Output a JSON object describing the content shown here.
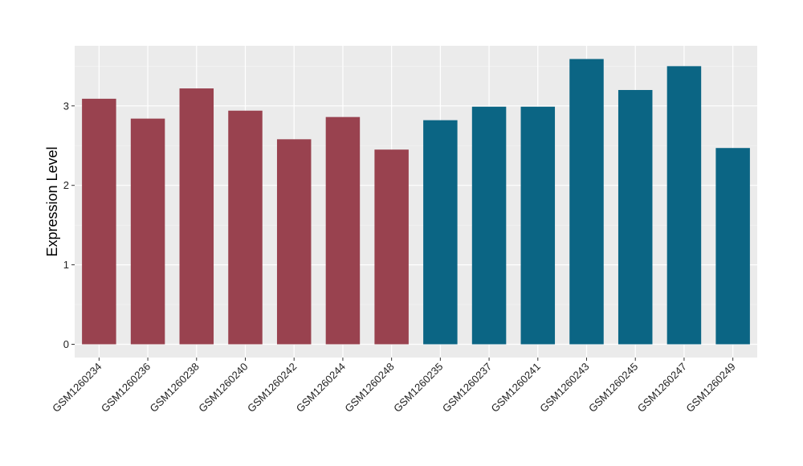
{
  "chart_data": {
    "type": "bar",
    "title": "",
    "xlabel": "",
    "ylabel": "Expression Level",
    "ylim": [
      0,
      3.6
    ],
    "yticks": [
      0,
      1,
      2,
      3
    ],
    "categories": [
      "GSM1260234",
      "GSM1260236",
      "GSM1260238",
      "GSM1260240",
      "GSM1260242",
      "GSM1260244",
      "GSM1260248",
      "GSM1260235",
      "GSM1260237",
      "GSM1260241",
      "GSM1260243",
      "GSM1260245",
      "GSM1260247",
      "GSM1260249"
    ],
    "values": [
      3.09,
      2.84,
      3.22,
      2.94,
      2.58,
      2.86,
      2.45,
      2.82,
      2.99,
      2.99,
      3.59,
      3.2,
      3.5,
      2.47
    ],
    "group": [
      "A",
      "A",
      "A",
      "A",
      "A",
      "A",
      "A",
      "B",
      "B",
      "B",
      "B",
      "B",
      "B",
      "B"
    ],
    "group_colors": {
      "A": "#99424f",
      "B": "#0b6584"
    },
    "panel_background": "#ebebeb",
    "grid": true,
    "legend": "none"
  }
}
